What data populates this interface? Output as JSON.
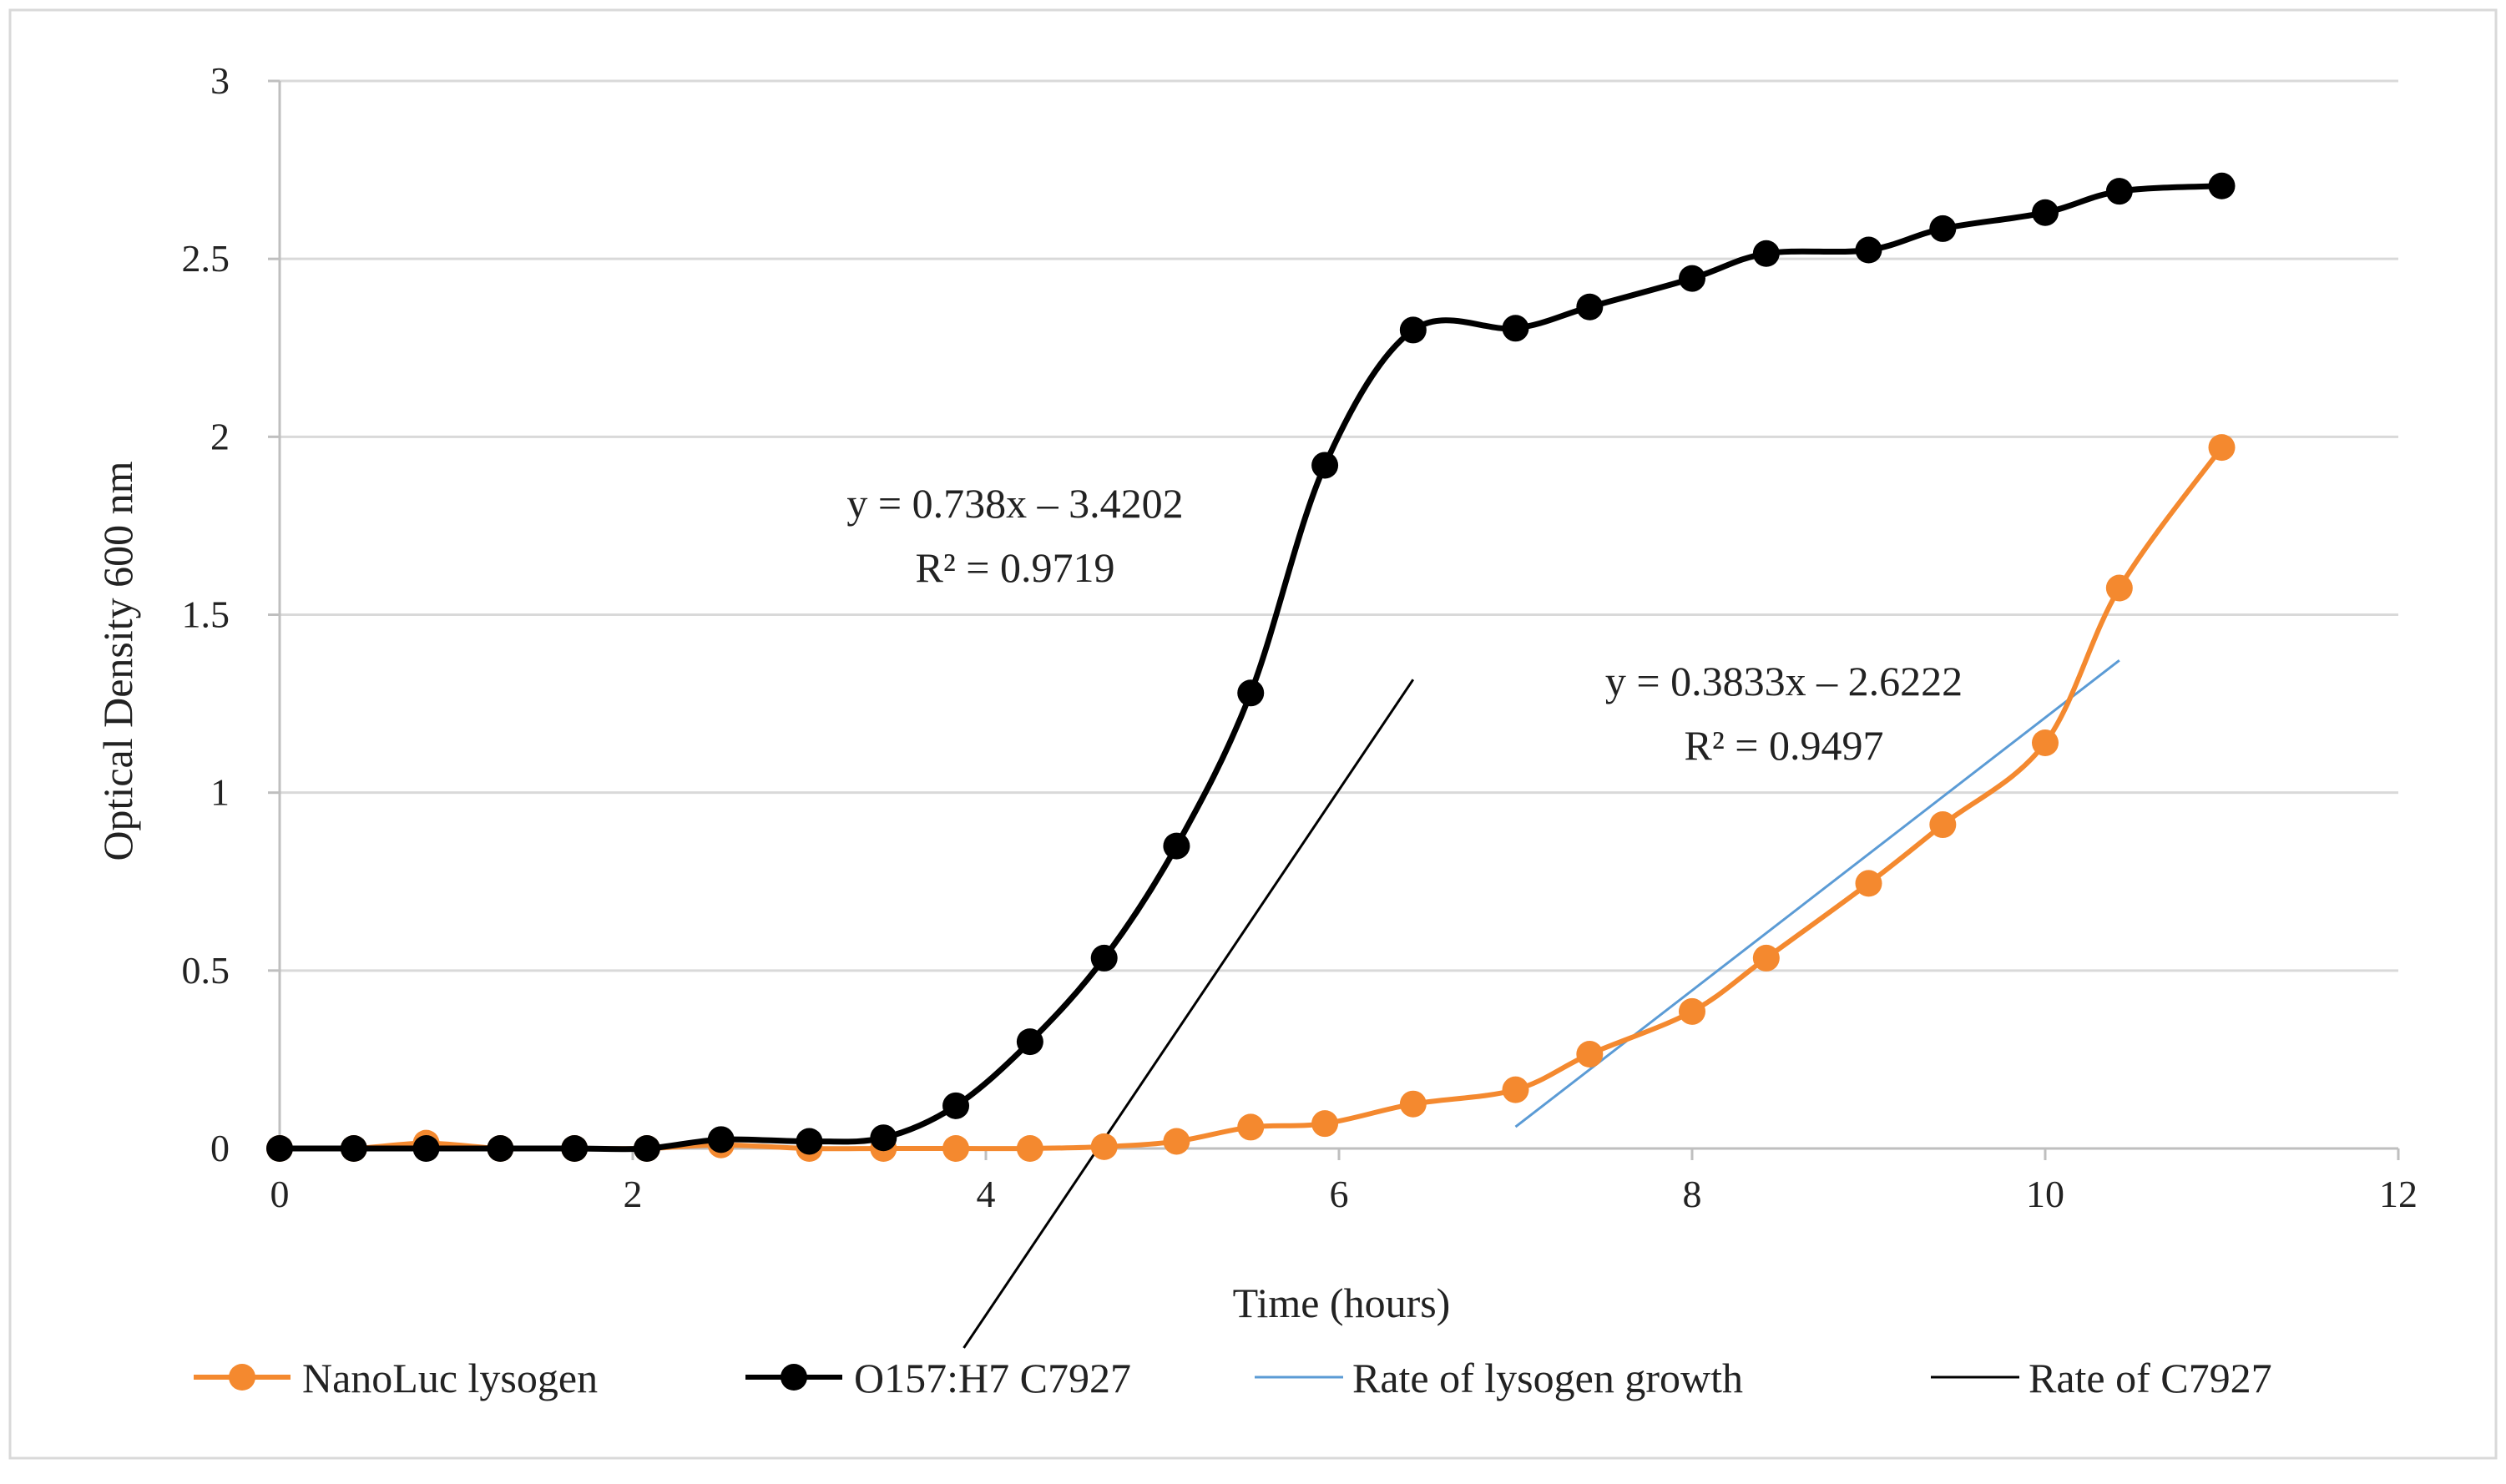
{
  "chart_data": {
    "type": "line",
    "xlabel": "Time (hours)",
    "ylabel": "Optical Density 600 nm",
    "xlim": [
      0,
      12
    ],
    "ylim": [
      0,
      3
    ],
    "xticks": [
      0,
      2,
      4,
      6,
      8,
      10,
      12
    ],
    "yticks": [
      0,
      0.5,
      1,
      1.5,
      2,
      2.5,
      3
    ],
    "x_tick_labels": [
      "0",
      "2",
      "4",
      "6",
      "8",
      "10",
      "12"
    ],
    "y_tick_labels": [
      "0",
      "0.5",
      "1",
      "1.5",
      "2",
      "2.5",
      "3"
    ],
    "grid": "horizontal",
    "legend_position": "bottom",
    "series": [
      {
        "name": "NanoLuc lysogen",
        "color": "#F4892F",
        "marker": "circle",
        "x": [
          0,
          0.42,
          0.83,
          1.25,
          1.67,
          2.08,
          2.5,
          3.0,
          3.42,
          3.83,
          4.25,
          4.67,
          5.08,
          5.5,
          5.92,
          6.42,
          7.0,
          7.42,
          8.0,
          8.42,
          9.0,
          9.42,
          10.0,
          10.42,
          11.0
        ],
        "values": [
          0.0,
          0.0,
          0.015,
          0.0,
          0.0,
          0.0,
          0.01,
          0.0,
          0.0,
          0.0,
          0.0,
          0.005,
          0.02,
          0.06,
          0.07,
          0.125,
          0.165,
          0.265,
          0.385,
          0.535,
          0.745,
          0.91,
          1.14,
          1.575,
          1.97
        ]
      },
      {
        "name": "O157:H7 C7927",
        "color": "#000000",
        "marker": "circle",
        "x": [
          0,
          0.42,
          0.83,
          1.25,
          1.67,
          2.08,
          2.5,
          3.0,
          3.42,
          3.83,
          4.25,
          4.67,
          5.08,
          5.5,
          5.92,
          6.42,
          7.0,
          7.42,
          8.0,
          8.42,
          9.0,
          9.42,
          10.0,
          10.42,
          11.0
        ],
        "values": [
          0.0,
          0.0,
          0.0,
          0.0,
          0.0,
          0.0,
          0.025,
          0.02,
          0.03,
          0.12,
          0.3,
          0.535,
          0.85,
          1.28,
          1.92,
          2.3,
          2.305,
          2.365,
          2.445,
          2.515,
          2.525,
          2.585,
          2.63,
          2.69,
          2.705
        ]
      }
    ],
    "trendlines": [
      {
        "name": "Rate of lysogen growth",
        "color": "#5B9BD5",
        "slope": 0.3833,
        "intercept": -2.6222,
        "x_range": [
          7.0,
          10.42
        ],
        "equation": "y = 0.3833x – 2.6222",
        "r2_text": "R² = 0.9497"
      },
      {
        "name": "Rate of C7927",
        "color": "#000000",
        "slope": 0.738,
        "intercept": -3.4202,
        "x_range": [
          3.875,
          6.42
        ],
        "equation": "y = 0.738x – 3.4202",
        "r2_text": "R² = 0.9719"
      }
    ]
  }
}
